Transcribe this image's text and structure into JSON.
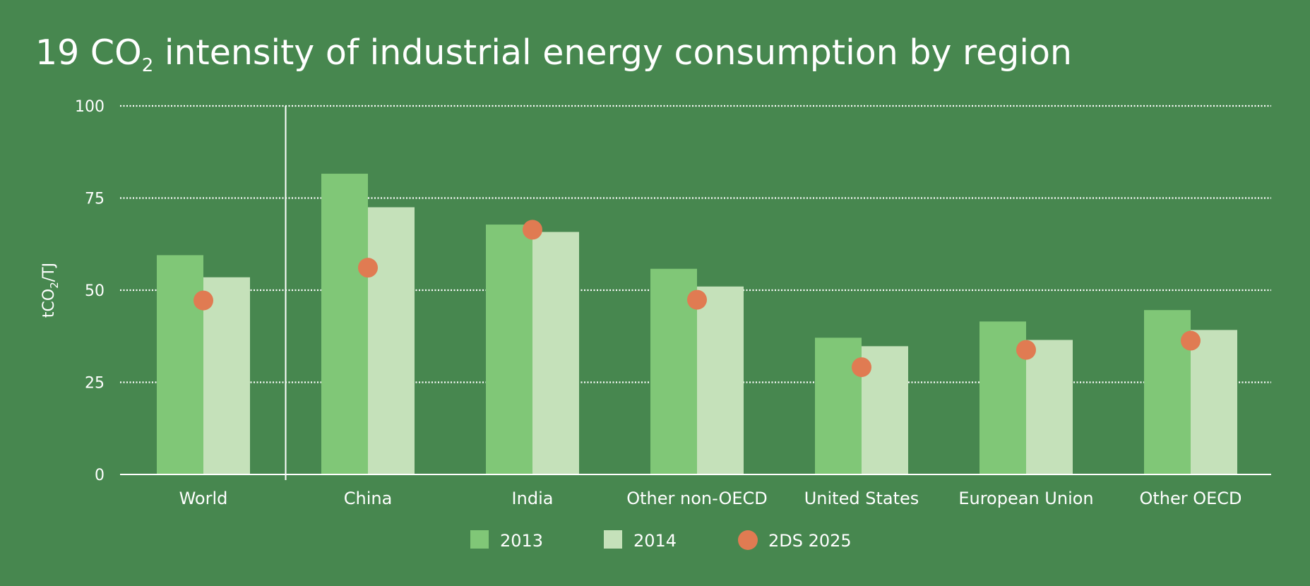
{
  "title": {
    "prefix": "19 CO",
    "subscript": "2",
    "rest": " intensity of industrial energy consumption by region"
  },
  "chart_data": {
    "type": "bar",
    "title": "19 CO2 intensity of industrial energy consumption by region",
    "ylabel": {
      "main": "tCO",
      "sub": "2",
      "tail": "/TJ"
    },
    "ylim": [
      0,
      100
    ],
    "yticks": [
      "0",
      "25",
      "50",
      "75",
      "100"
    ],
    "grid": true,
    "legend_position": "bottom",
    "categories": [
      "World",
      "China",
      "India",
      "Other non-OECD",
      "United States",
      "European Union",
      "Other OECD"
    ],
    "series": [
      {
        "name": "2013",
        "kind": "bar",
        "color": "#80c777",
        "values": [
          59.5,
          81.6,
          67.8,
          55.8,
          37.1,
          41.5,
          44.6
        ]
      },
      {
        "name": "2014",
        "kind": "bar",
        "color": "#c5e1ba",
        "values": [
          53.5,
          72.5,
          65.8,
          51.0,
          34.8,
          36.5,
          39.2
        ]
      },
      {
        "name": "2DS 2025",
        "kind": "marker",
        "color": "#e07b52",
        "values": [
          47.2,
          56.1,
          66.4,
          47.4,
          29.1,
          33.8,
          36.3
        ]
      }
    ]
  }
}
